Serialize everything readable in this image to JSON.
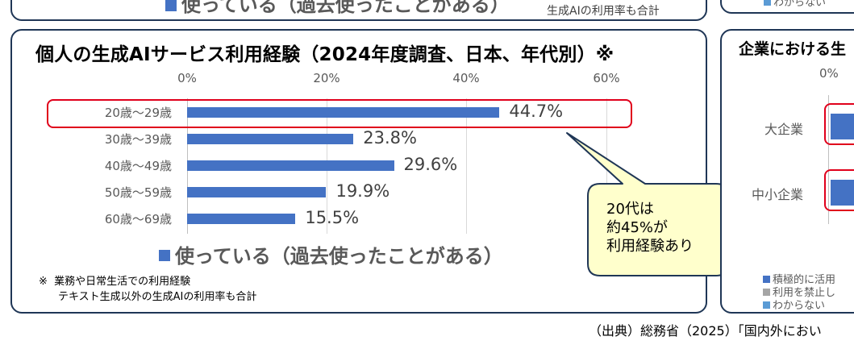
{
  "top_strip": {
    "legend_label": "使っている（過去使ったことがある）",
    "note": "生成AIの利用率も合計",
    "right_legend_label": "わからない"
  },
  "chart_data": {
    "type": "bar",
    "orientation": "horizontal",
    "title": "個人の生成AIサービス利用経験（2024年度調査、日本、年代別）※",
    "categories": [
      "20歳～29歳",
      "30歳～39歳",
      "40歳～49歳",
      "50歳～59歳",
      "60歳～69歳"
    ],
    "series": [
      {
        "name": "使っている（過去使ったことがある）",
        "values": [
          44.7,
          23.8,
          29.6,
          19.9,
          15.5
        ],
        "color": "#4472c4"
      }
    ],
    "value_labels": [
      "44.7%",
      "23.8%",
      "29.6%",
      "19.9%",
      "15.5%"
    ],
    "x_ticks": [
      "0%",
      "20%",
      "40%",
      "60%"
    ],
    "xlim": [
      0,
      60
    ],
    "xlabel": "",
    "ylabel": "",
    "grid": true,
    "legend_position": "bottom",
    "highlighted_category": "20歳～29歳",
    "annotation": {
      "lines": [
        "20代は",
        "約45%が",
        "利用経験あり"
      ],
      "fill": "#ffffcc",
      "border": "#1f3656"
    }
  },
  "footnote": {
    "mark": "※",
    "line1": "業務や日常生活での利用経験",
    "line2": "テキスト生成以外の生成AIの利用率も合計"
  },
  "right_panel": {
    "title": "企業における生",
    "tick": "0%",
    "categories": [
      "大企業",
      "中小企業"
    ],
    "legend": [
      {
        "label": "積極的に活用",
        "color": "#4472c4"
      },
      {
        "label": "利用を禁止し",
        "color": "#a5a5a5"
      },
      {
        "label": "わからない",
        "color": "#5b9bd5"
      }
    ]
  },
  "source": "（出典）総務省（2025）「国内外におい",
  "colors": {
    "bar": "#4472c4",
    "highlight": "#e0001b",
    "panel_border": "#1f3656",
    "callout_fill": "#ffffcc"
  }
}
